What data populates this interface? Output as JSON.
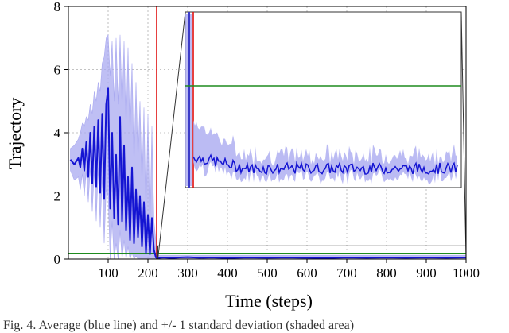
{
  "chart_data": {
    "type": "line",
    "xlabel": "Time (steps)",
    "ylabel": "Trajectory",
    "xlim": [
      0,
      1000
    ],
    "ylim": [
      0,
      8
    ],
    "xticks": [
      "100",
      "200",
      "300",
      "400",
      "500",
      "600",
      "700",
      "800",
      "900",
      "1000"
    ],
    "yticks": [
      "0",
      "2",
      "4",
      "6",
      "8"
    ],
    "grid": true,
    "colors": {
      "mean": "#1414d2",
      "band": "#aaaaf0",
      "threshold": "#1e8c1e",
      "vline": "#e01010",
      "inset_frame": "#333333",
      "inset_axis": "#3a3ac8"
    },
    "vertical_line_x": 222,
    "horizontal_line_y": 0.18,
    "mean_series": {
      "x": [
        5,
        15,
        25,
        30,
        35,
        40,
        45,
        50,
        55,
        60,
        65,
        70,
        75,
        80,
        85,
        90,
        95,
        100,
        105,
        110,
        115,
        120,
        125,
        130,
        135,
        140,
        145,
        150,
        155,
        160,
        165,
        170,
        175,
        180,
        185,
        190,
        195,
        200,
        205,
        210,
        215,
        220,
        225,
        230,
        240,
        260,
        280,
        300,
        330,
        360,
        400,
        450,
        500,
        550,
        600,
        650,
        700,
        750,
        800,
        850,
        900,
        950,
        1000
      ],
      "y": [
        3.15,
        3.0,
        3.2,
        2.9,
        3.5,
        2.8,
        3.7,
        2.6,
        4.0,
        2.4,
        4.2,
        2.3,
        4.4,
        2.1,
        4.6,
        1.9,
        4.9,
        5.4,
        1.6,
        4.0,
        1.3,
        3.3,
        1.1,
        4.5,
        1.2,
        3.6,
        0.9,
        2.6,
        0.6,
        2.9,
        0.5,
        2.2,
        0.7,
        2.0,
        0.4,
        1.8,
        0.2,
        1.4,
        0.15,
        1.3,
        0.3,
        0.05,
        0.02,
        0.04,
        0.05,
        0.03,
        0.05,
        0.06,
        0.04,
        0.05,
        0.03,
        0.05,
        0.04,
        0.05,
        0.04,
        0.03,
        0.05,
        0.04,
        0.05,
        0.04,
        0.05,
        0.04,
        0.05
      ]
    },
    "band_upper": [
      3.5,
      3.6,
      3.8,
      4.0,
      4.3,
      4.2,
      4.5,
      4.4,
      4.9,
      4.6,
      5.3,
      5.0,
      5.6,
      5.3,
      6.2,
      6.4,
      7.0,
      7.1,
      5.8,
      6.9,
      5.0,
      7.0,
      4.9,
      7.1,
      4.8,
      6.9,
      4.2,
      6.7,
      4.0,
      6.2,
      3.0,
      5.6,
      3.2,
      5.0,
      2.4,
      4.8,
      1.5,
      4.6,
      1.0,
      4.2,
      1.2,
      0.6,
      0.12,
      0.12,
      0.12,
      0.12,
      0.12,
      0.12,
      0.12,
      0.12,
      0.12,
      0.12,
      0.12,
      0.12,
      0.12,
      0.12,
      0.12,
      0.12,
      0.12,
      0.12,
      0.12,
      0.12,
      0.12
    ],
    "band_lower": [
      2.8,
      2.5,
      2.6,
      2.2,
      2.7,
      2.0,
      2.8,
      1.8,
      2.9,
      1.5,
      2.8,
      1.2,
      2.9,
      1.0,
      2.6,
      0.5,
      2.2,
      2.0,
      0.0,
      1.2,
      0.0,
      0.5,
      0.0,
      0.9,
      0.0,
      0.6,
      0.0,
      0.4,
      0.0,
      0.2,
      0.0,
      0.1,
      0.0,
      0.0,
      0.0,
      0.0,
      0.0,
      0.0,
      0.0,
      0.0,
      0.0,
      0.0,
      0.0,
      0.0,
      0.0,
      0.0,
      0.0,
      0.0,
      0.0,
      0.0,
      0.0,
      0.0,
      0.0,
      0.0,
      0.0,
      0.0,
      0.0,
      0.0,
      0.0,
      0.0,
      0.0,
      0.0,
      0.0
    ]
  },
  "caption": "Fig. 4.   Average (blue line) and +/- 1 standard deviation (shaded area)"
}
